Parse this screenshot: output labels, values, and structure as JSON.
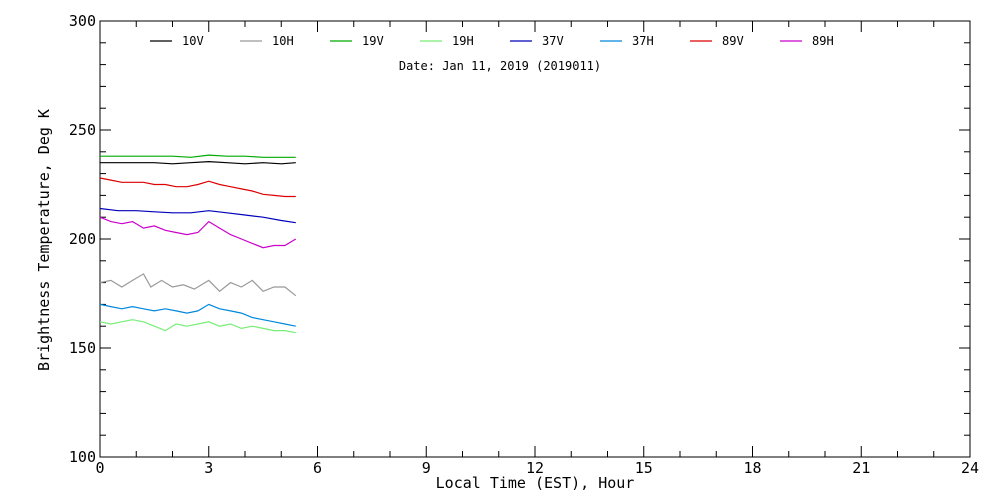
{
  "chart_data": {
    "type": "line",
    "title": "",
    "subtitle": "Date: Jan 11, 2019 (2019011)",
    "xlabel": "Local Time (EST), Hour",
    "ylabel": "Brightness Temperature, Deg K",
    "xlim": [
      0,
      24
    ],
    "ylim": [
      100,
      300
    ],
    "xticks": [
      0,
      3,
      6,
      9,
      12,
      15,
      18,
      21,
      24
    ],
    "yticks": [
      100,
      150,
      200,
      250,
      300
    ],
    "grid": false,
    "legend_position": "top",
    "series": [
      {
        "name": "10V",
        "color": "#000000",
        "x": [
          0,
          0.5,
          1,
          1.5,
          2,
          2.5,
          3,
          3.5,
          4,
          4.5,
          5,
          5.4
        ],
        "y": [
          235,
          235,
          235,
          235,
          234.5,
          235,
          235.5,
          235,
          234.5,
          235,
          234.5,
          235
        ]
      },
      {
        "name": "10H",
        "color": "#999999",
        "x": [
          0,
          0.3,
          0.6,
          0.9,
          1.2,
          1.4,
          1.7,
          2.0,
          2.3,
          2.6,
          3.0,
          3.3,
          3.6,
          3.9,
          4.2,
          4.5,
          4.8,
          5.1,
          5.4
        ],
        "y": [
          180,
          181,
          178,
          181,
          184,
          178,
          181,
          178,
          179,
          177,
          181,
          176,
          180,
          178,
          181,
          176,
          178,
          178,
          174
        ]
      },
      {
        "name": "19V",
        "color": "#00aa00",
        "x": [
          0,
          0.5,
          1,
          1.5,
          2,
          2.5,
          3,
          3.5,
          4,
          4.5,
          5,
          5.4
        ],
        "y": [
          238,
          238,
          238,
          238,
          238,
          237.5,
          238.5,
          238,
          238,
          237.5,
          237.5,
          237.5
        ]
      },
      {
        "name": "19H",
        "color": "#77ee77",
        "x": [
          0,
          0.3,
          0.6,
          0.9,
          1.2,
          1.5,
          1.8,
          2.1,
          2.4,
          2.7,
          3.0,
          3.3,
          3.6,
          3.9,
          4.2,
          4.5,
          4.8,
          5.1,
          5.4
        ],
        "y": [
          162,
          161,
          162,
          163,
          162,
          160,
          158,
          161,
          160,
          161,
          162,
          160,
          161,
          159,
          160,
          159,
          158,
          158,
          157
        ]
      },
      {
        "name": "37V",
        "color": "#0000bb",
        "x": [
          0,
          0.5,
          1,
          1.5,
          2,
          2.5,
          3,
          3.5,
          4,
          4.5,
          5,
          5.4
        ],
        "y": [
          214,
          213,
          213,
          212.5,
          212,
          212,
          213,
          212,
          211,
          210,
          208.5,
          207.5
        ]
      },
      {
        "name": "37H",
        "color": "#0088dd",
        "x": [
          0,
          0.3,
          0.6,
          0.9,
          1.2,
          1.5,
          1.8,
          2.1,
          2.4,
          2.7,
          3.0,
          3.3,
          3.6,
          3.9,
          4.2,
          4.5,
          4.8,
          5.1,
          5.4
        ],
        "y": [
          170,
          169,
          168,
          169,
          168,
          167,
          168,
          167,
          166,
          167,
          170,
          168,
          167,
          166,
          164,
          163,
          162,
          161,
          160
        ]
      },
      {
        "name": "89V",
        "color": "#dd0000",
        "x": [
          0,
          0.3,
          0.6,
          0.9,
          1.2,
          1.5,
          1.8,
          2.1,
          2.4,
          2.7,
          3.0,
          3.3,
          3.6,
          3.9,
          4.2,
          4.5,
          4.8,
          5.1,
          5.4
        ],
        "y": [
          228,
          227,
          226,
          226,
          226,
          225,
          225,
          224,
          224,
          225,
          226.5,
          225,
          224,
          223,
          222,
          220.5,
          220,
          219.5,
          219.5
        ]
      },
      {
        "name": "89H",
        "color": "#cc00cc",
        "x": [
          0,
          0.3,
          0.6,
          0.9,
          1.2,
          1.5,
          1.8,
          2.1,
          2.4,
          2.7,
          3.0,
          3.3,
          3.6,
          3.9,
          4.2,
          4.5,
          4.8,
          5.1,
          5.4
        ],
        "y": [
          210,
          208,
          207,
          208,
          205,
          206,
          204,
          203,
          202,
          203,
          208,
          205,
          202,
          200,
          198,
          196,
          197,
          197,
          200
        ]
      }
    ]
  }
}
